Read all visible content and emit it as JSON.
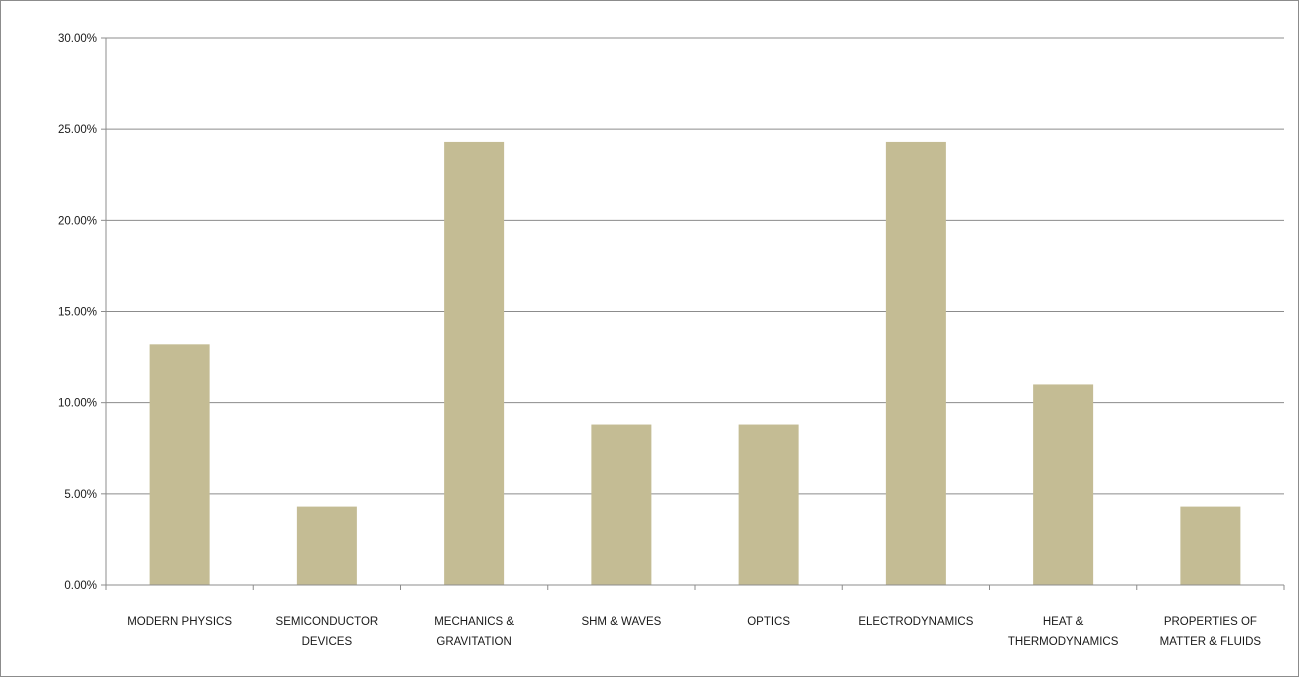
{
  "chart_data": {
    "type": "bar",
    "categories": [
      "MODERN PHYSICS",
      "SEMICONDUCTOR DEVICES",
      "MECHANICS & GRAVITATION",
      "SHM & WAVES",
      "OPTICS",
      "ELECTRODYNAMICS",
      "HEAT & THERMODYNAMICS",
      "PROPERTIES OF MATTER & FLUIDS"
    ],
    "category_lines": [
      [
        "MODERN PHYSICS"
      ],
      [
        "SEMICONDUCTOR",
        "DEVICES"
      ],
      [
        "MECHANICS &",
        "GRAVITATION"
      ],
      [
        "SHM & WAVES"
      ],
      [
        "OPTICS"
      ],
      [
        "ELECTRODYNAMICS"
      ],
      [
        "HEAT &",
        "THERMODYNAMICS"
      ],
      [
        "PROPERTIES OF",
        "MATTER & FLUIDS"
      ]
    ],
    "values": [
      13.2,
      4.3,
      24.3,
      8.8,
      8.8,
      24.3,
      11.0,
      4.3
    ],
    "yticks": [
      "0.00%",
      "5.00%",
      "10.00%",
      "15.00%",
      "20.00%",
      "25.00%",
      "30.00%"
    ],
    "ylim": [
      0,
      30
    ],
    "title": "",
    "xlabel": "",
    "ylabel": "",
    "grid": true,
    "legend": "none",
    "bar_color": "#c4bc94",
    "grid_color": "#8c8c8c",
    "axis_color": "#8c8c8c"
  }
}
